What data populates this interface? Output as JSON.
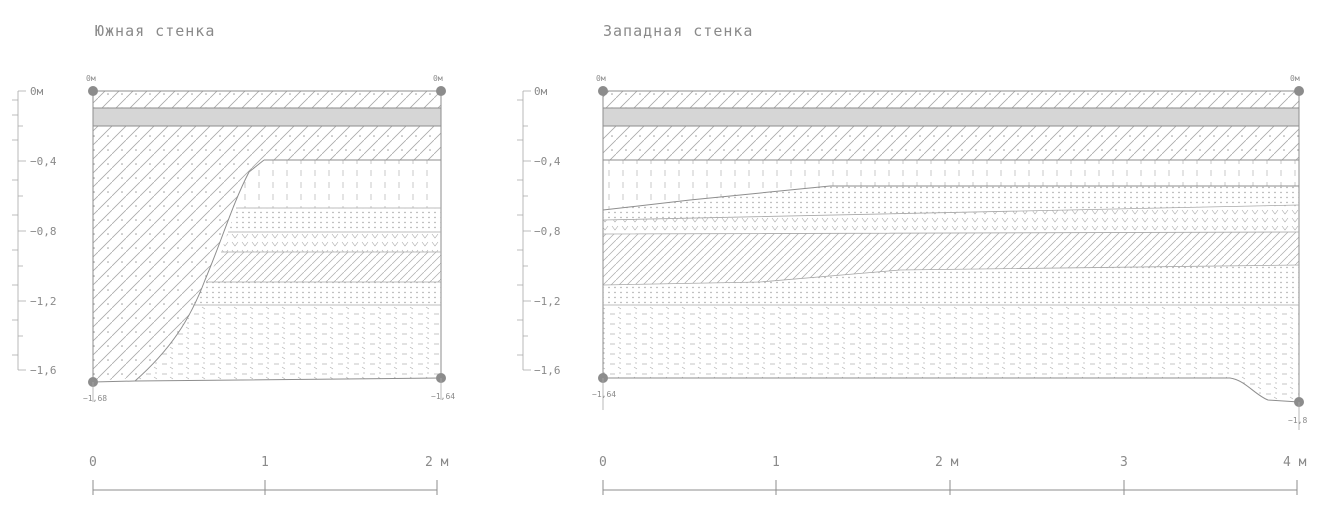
{
  "south_wall": {
    "title": "Южная стенка",
    "depth_ticks": [
      "0м",
      "−0,4",
      "−0,8",
      "−1,2",
      "−1,6"
    ],
    "corner_left_top": "0м",
    "corner_right_top": "0м",
    "corner_left_bottom": "−1,68",
    "corner_right_bottom": "−1,64",
    "scale_ticks": [
      "0",
      "1",
      "2 м"
    ]
  },
  "west_wall": {
    "title": "Западная стенка",
    "depth_ticks": [
      "0м",
      "−0,4",
      "−0,8",
      "−1,2",
      "−1,6"
    ],
    "corner_left_top": "0м",
    "corner_right_top": "0м",
    "corner_left_bottom": "−1,64",
    "corner_right_bottom": "−1,8",
    "scale_ticks": [
      "0",
      "1",
      "2 м",
      "3",
      "4 м"
    ]
  },
  "colors": {
    "line": "#8e8e8e",
    "gray_band": "#d6d6d6",
    "hatch": "#a9a9a9"
  }
}
